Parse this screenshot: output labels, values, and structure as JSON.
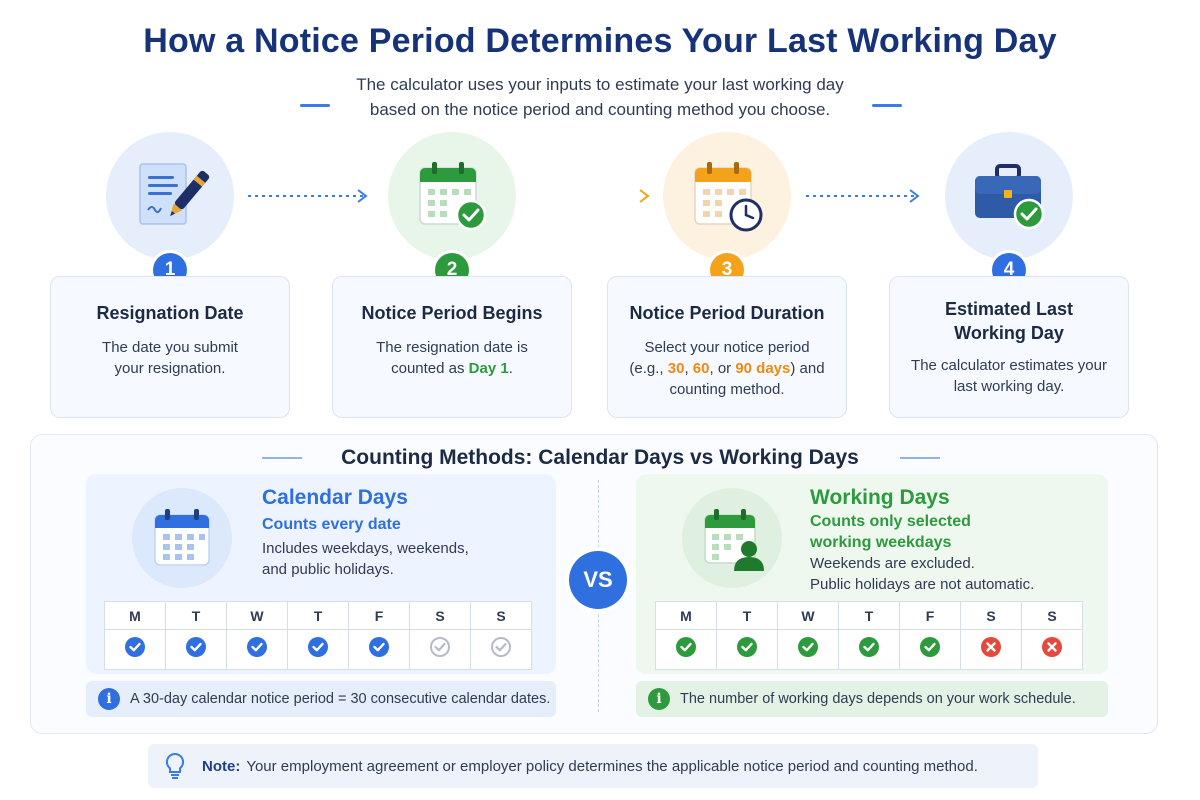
{
  "header": {
    "title": "How a Notice Period Determines Your Last Working Day",
    "subtitle_line1": "The calculator uses your inputs to estimate your last working day",
    "subtitle_line2": "based on the notice period and counting method you choose."
  },
  "steps": [
    {
      "number": "1",
      "title": "Resignation Date",
      "desc_line1": "The date you submit",
      "desc_line2": "your resignation.",
      "icon": "document-pen-icon",
      "color": "#2f6fe0"
    },
    {
      "number": "2",
      "title": "Notice Period Begins",
      "desc_line1": "The resignation date is",
      "desc_pre": "counted as ",
      "desc_highlight": "Day 1",
      "desc_post": ".",
      "icon": "calendar-check-icon",
      "color": "#2e9a3e"
    },
    {
      "number": "3",
      "title": "Notice Period Duration",
      "desc_line1": "Select your notice period",
      "desc_pre": "(e.g., ",
      "desc_h1": "30",
      "desc_sep1": ", ",
      "desc_h2": "60",
      "desc_sep2": ", or ",
      "desc_h3": "90 days",
      "desc_post": ") and",
      "desc_line3": "counting method.",
      "icon": "calendar-clock-icon",
      "color": "#f5a21b"
    },
    {
      "number": "4",
      "title_line1": "Estimated Last",
      "title_line2": "Working Day",
      "desc_line1": "The calculator estimates your",
      "desc_line2": "last working day.",
      "icon": "briefcase-check-icon",
      "color": "#2f6fe0"
    }
  ],
  "counting": {
    "title": "Counting Methods: Calendar Days vs Working Days",
    "vs_label": "VS",
    "calendar": {
      "title": "Calendar Days",
      "subtitle": "Counts every date",
      "desc_line1": "Includes weekdays, weekends,",
      "desc_line2": "and public holidays.",
      "days": [
        "M",
        "T",
        "W",
        "T",
        "F",
        "S",
        "S"
      ],
      "marks": [
        "check-blue",
        "check-blue",
        "check-blue",
        "check-blue",
        "check-blue",
        "check-gray",
        "check-gray"
      ],
      "info": "A 30-day calendar notice period = 30 consecutive calendar dates.",
      "accent": "#2f6fe0"
    },
    "working": {
      "title": "Working Days",
      "subtitle_line1": "Counts only selected",
      "subtitle_line2": "working weekdays",
      "desc_line1": "Weekends are excluded.",
      "desc_line2": "Public holidays are not automatic.",
      "days": [
        "M",
        "T",
        "W",
        "T",
        "F",
        "S",
        "S"
      ],
      "marks": [
        "check-green",
        "check-green",
        "check-green",
        "check-green",
        "check-green",
        "cross-red",
        "cross-red"
      ],
      "info": "The number of working days depends on your work schedule.",
      "accent": "#2e9a3e"
    }
  },
  "footer_note": {
    "label": "Note:",
    "text": "Your employment agreement or employer policy determines the applicable notice period and counting method.",
    "icon": "lightbulb-icon"
  }
}
